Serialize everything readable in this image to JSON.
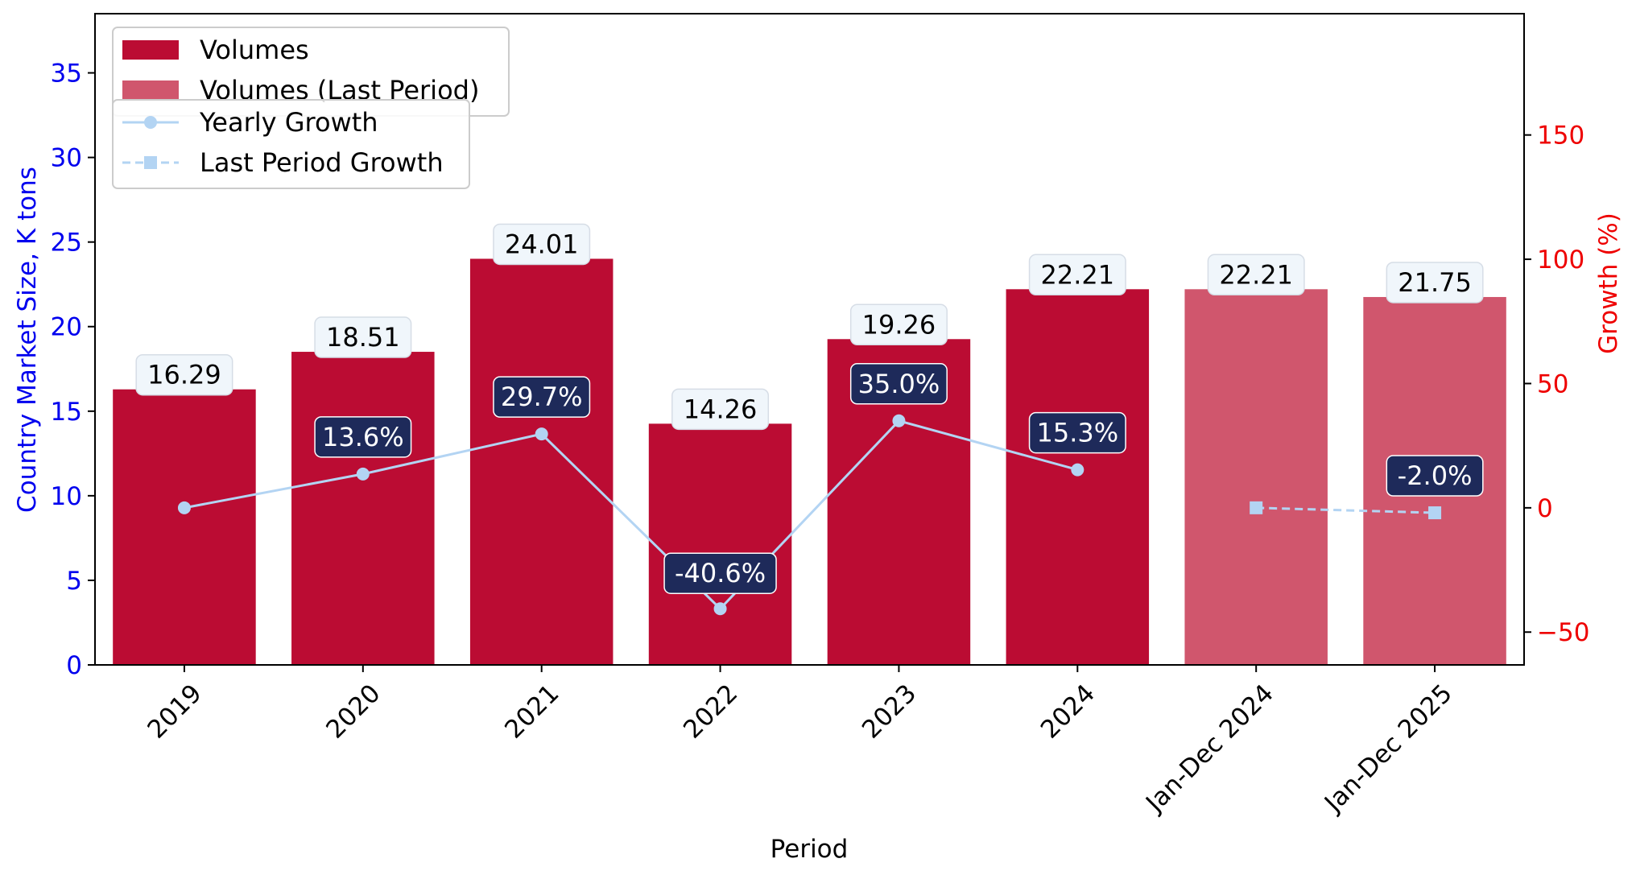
{
  "chart_data": {
    "type": "bar",
    "categories": [
      "2019",
      "2020",
      "2021",
      "2022",
      "2023",
      "2024",
      "Jan-Dec 2024",
      "Jan-Dec 2025"
    ],
    "series": [
      {
        "name": "Volumes",
        "kind": "bar",
        "values": [
          16.29,
          18.51,
          24.01,
          14.26,
          19.26,
          22.21,
          null,
          null
        ],
        "color": "#bb0c33"
      },
      {
        "name": "Volumes (Last Period)",
        "kind": "bar",
        "values": [
          null,
          null,
          null,
          null,
          null,
          null,
          22.21,
          21.75
        ],
        "color": "#d0566d"
      },
      {
        "name": "Yearly Growth",
        "kind": "line",
        "axis": "right",
        "values": [
          0.0,
          13.6,
          29.7,
          -40.6,
          35.0,
          15.3,
          null,
          null
        ],
        "color": "#b3d4f3",
        "marker": "circle"
      },
      {
        "name": "Last Period Growth",
        "kind": "line",
        "axis": "right",
        "style": "dashed",
        "values": [
          null,
          null,
          null,
          null,
          null,
          null,
          0.0,
          -2.0
        ],
        "color": "#b3d4f3",
        "marker": "square"
      }
    ],
    "bar_labels": [
      "16.29",
      "18.51",
      "24.01",
      "14.26",
      "19.26",
      "22.21",
      "22.21",
      "21.75"
    ],
    "growth_labels": [
      "",
      "13.6%",
      "29.7%",
      "-40.6%",
      "35.0%",
      "15.3%",
      "",
      "-2.0%"
    ],
    "xlabel": "Period",
    "ylabel": "Country Market Size, K tons",
    "y2label": "Growth (%)",
    "ylim": [
      0,
      38.5
    ],
    "y2lim": [
      -63.2,
      198.8
    ],
    "yticks": [
      "0",
      "5",
      "10",
      "15",
      "20",
      "25",
      "30",
      "35"
    ],
    "y2ticks": [
      "−50",
      "0",
      "50",
      "100",
      "150"
    ],
    "left_axis_color": "#0000ee",
    "right_axis_color": "#ee0000",
    "growth_box_color": "#1e2a5a",
    "value_box_color": "#f0f6fb",
    "grid": false,
    "legend_position": "top-left"
  }
}
